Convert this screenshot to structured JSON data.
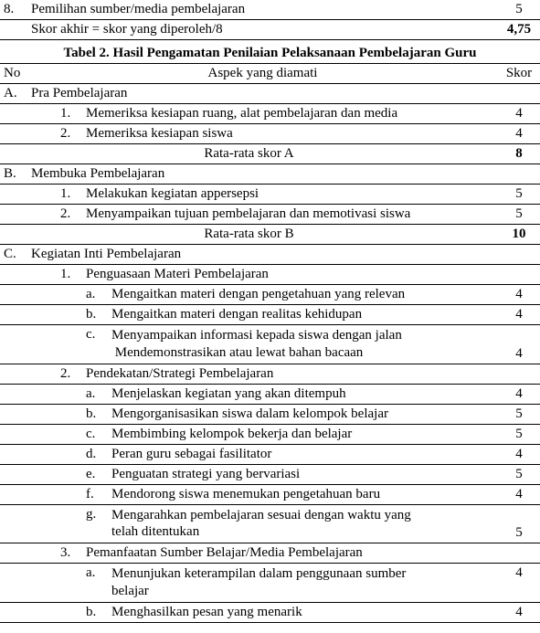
{
  "top_table": {
    "row8": {
      "num": "8.",
      "text": "Pemilihan sumber/media pembelajaran",
      "score": "5"
    },
    "final": {
      "text": "Skor akhir = skor yang diperoleh/8",
      "score": "4,75"
    }
  },
  "title": "Tabel 2. Hasil Pengamatan Penilaian Pelaksanaan Pembelajaran Guru",
  "header": {
    "no": "No",
    "aspek": "Aspek yang diamati",
    "skor": "Skor"
  },
  "A": {
    "label": "A.",
    "name": "Pra Pembelajaran",
    "items": {
      "i1": {
        "idx": "1.",
        "text": "Memeriksa kesiapan ruang, alat pembelajaran dan media",
        "score": "4"
      },
      "i2": {
        "idx": "2.",
        "text": "Memeriksa kesiapan siswa",
        "score": "4"
      }
    },
    "avg": {
      "label": "Rata-rata skor A",
      "score": "8"
    }
  },
  "B": {
    "label": "B.",
    "name": "Membuka Pembelajaran",
    "items": {
      "i1": {
        "idx": "1.",
        "text": "Melakukan kegiatan appersepsi",
        "score": "5"
      },
      "i2": {
        "idx": "2.",
        "text": "Menyampaikan tujuan pembelajaran dan memotivasi siswa",
        "score": "5"
      }
    },
    "avg": {
      "label": "Rata-rata skor B",
      "score": "10"
    }
  },
  "C": {
    "label": "C.",
    "name": "Kegiatan Inti Pembelajaran",
    "s1": {
      "idx": "1.",
      "name": "Penguasaan Materi Pembelajaran",
      "a": {
        "sub": "a.",
        "text": "Mengaitkan materi dengan pengetahuan yang relevan",
        "score": "4"
      },
      "b": {
        "sub": "b.",
        "text": "Mengaitkan materi dengan realitas kehidupan",
        "score": "4"
      },
      "c": {
        "sub": "c.",
        "line1": "Menyampaikan informasi kepada siswa dengan jalan",
        "line2": "Mendemonstrasikan atau lewat bahan bacaan",
        "score": "4"
      }
    },
    "s2": {
      "idx": "2.",
      "name": "Pendekatan/Strategi Pembelajaran",
      "a": {
        "sub": "a.",
        "text": "Menjelaskan kegiatan yang akan ditempuh",
        "score": "4"
      },
      "b": {
        "sub": "b.",
        "text": "Mengorganisasikan siswa dalam kelompok belajar",
        "score": "5"
      },
      "c": {
        "sub": "c.",
        "text": "Membimbing kelompok bekerja dan belajar",
        "score": "5"
      },
      "d": {
        "sub": "d.",
        "text": "Peran guru sebagai fasilitator",
        "score": "4"
      },
      "e": {
        "sub": "e.",
        "text": "Penguatan strategi yang bervariasi",
        "score": "5"
      },
      "f": {
        "sub": "f.",
        "text": "Mendorong siswa menemukan pengetahuan baru",
        "score": "4"
      },
      "g": {
        "sub": "g.",
        "line1": "Mengarahkan pembelajaran sesuai dengan waktu yang",
        "line2": "telah ditentukan",
        "score": "5"
      }
    },
    "s3": {
      "idx": "3.",
      "name": "Pemanfaatan Sumber Belajar/Media Pembelajaran",
      "a": {
        "sub": "a.",
        "line1": "Menunjukan keterampilan dalam penggunaan sumber",
        "line2": "belajar",
        "score": "4"
      },
      "b": {
        "sub": "b.",
        "text": "Menghasilkan pesan yang menarik",
        "score": "4"
      }
    }
  }
}
